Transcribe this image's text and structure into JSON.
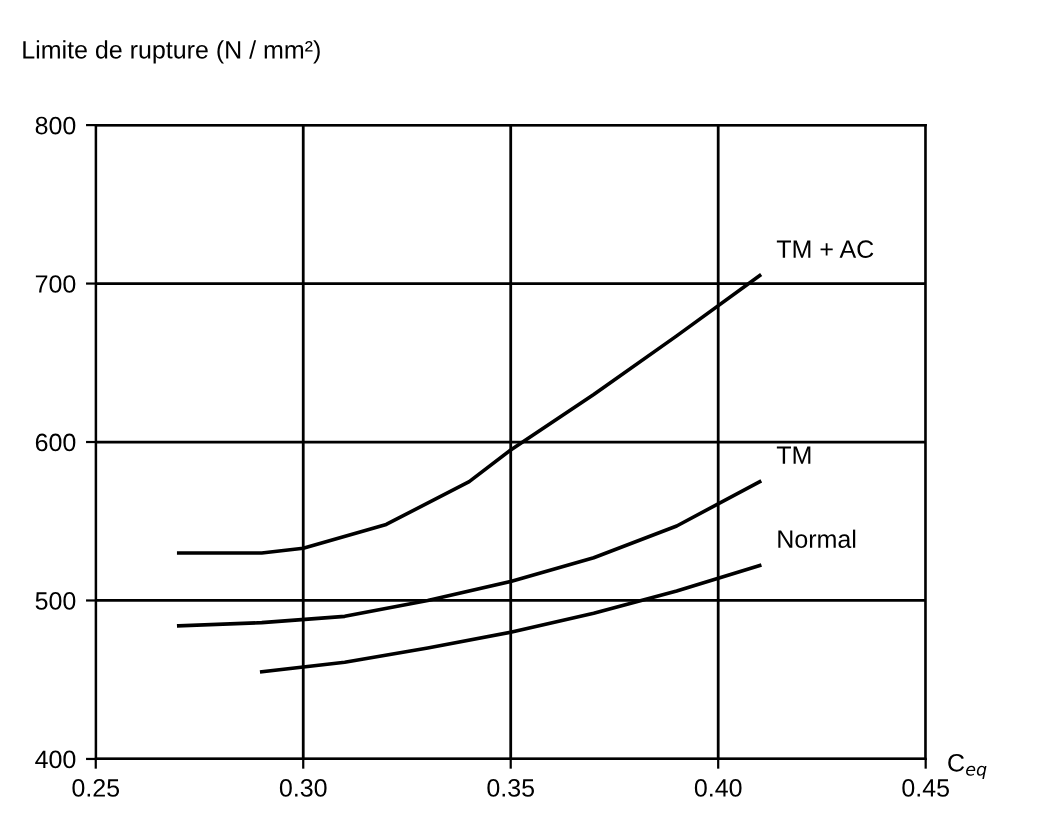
{
  "chart_data": {
    "type": "line",
    "ylabel": "Limite de rupture (N / mm²)",
    "xlabel": "C$_{eq}$",
    "xlim": [
      0.25,
      0.45
    ],
    "xticks": [
      0.25,
      {
        "value": 0.3,
        "label": "0.30"
      },
      0.35,
      {
        "value": 0.4,
        "label": "0.40"
      },
      0.45
    ],
    "ylim": [
      400,
      800
    ],
    "yticks": [
      400,
      500,
      600,
      700,
      800
    ],
    "grid": true,
    "legend": false,
    "marker": "none",
    "line_style": "solid",
    "series": [
      {
        "name": "TM + AC",
        "color": "#000000",
        "x": [
          0.27,
          0.29,
          0.3,
          0.32,
          0.34,
          0.35,
          0.37,
          0.39,
          0.41
        ],
        "values": [
          530,
          530,
          533,
          548,
          575,
          595,
          630,
          667,
          705
        ]
      },
      {
        "name": "TM",
        "color": "#000000",
        "x": [
          0.27,
          0.29,
          0.31,
          0.33,
          0.35,
          0.37,
          0.39,
          0.41
        ],
        "values": [
          484,
          486,
          490,
          500,
          512,
          527,
          547,
          575
        ]
      },
      {
        "name": "Normal",
        "color": "#000000",
        "x": [
          0.29,
          0.31,
          0.33,
          0.35,
          0.37,
          0.39,
          0.41
        ],
        "values": [
          455,
          461,
          470,
          480,
          492,
          506,
          522
        ]
      }
    ]
  }
}
